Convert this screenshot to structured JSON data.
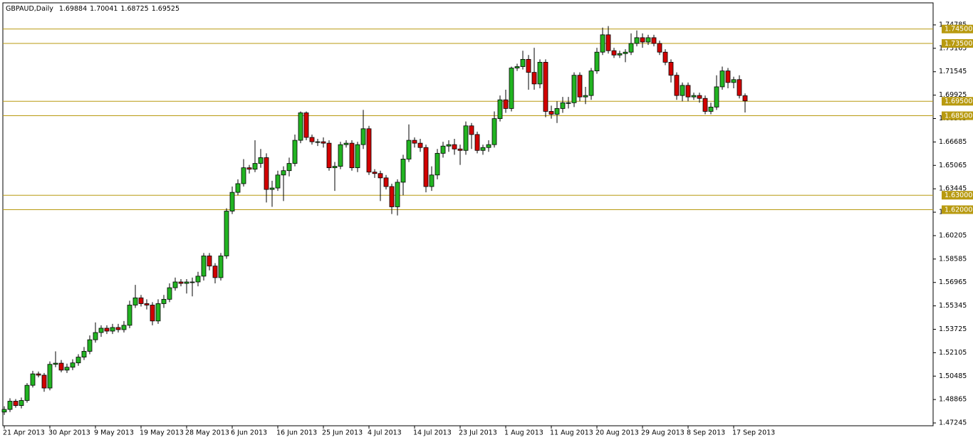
{
  "chart_data": {
    "type": "candlestick",
    "title": "GBPAUD,Daily",
    "header_values": [
      1.69884,
      1.70041,
      1.68725,
      1.69525
    ],
    "categories": [
      "21 Apr 2013",
      null,
      null,
      null,
      null,
      null,
      null,
      null,
      "30 Apr 2013",
      null,
      null,
      null,
      null,
      null,
      null,
      null,
      "9 May 2013",
      null,
      null,
      null,
      null,
      null,
      null,
      null,
      "19 May 2013",
      null,
      null,
      null,
      null,
      null,
      null,
      null,
      "28 May 2013",
      null,
      null,
      null,
      null,
      null,
      null,
      null,
      "6 Jun 2013",
      null,
      null,
      null,
      null,
      null,
      null,
      null,
      "16 Jun 2013",
      null,
      null,
      null,
      null,
      null,
      null,
      null,
      "25 Jun 2013",
      null,
      null,
      null,
      null,
      null,
      null,
      null,
      "4 Jul 2013",
      null,
      null,
      null,
      null,
      null,
      null,
      null,
      "14 Jul 2013",
      null,
      null,
      null,
      null,
      null,
      null,
      null,
      "23 Jul 2013",
      null,
      null,
      null,
      null,
      null,
      null,
      null,
      "1 Aug 2013",
      null,
      null,
      null,
      null,
      null,
      null,
      null,
      "11 Aug 2013",
      null,
      null,
      null,
      null,
      null,
      null,
      null,
      "20 Aug 2013",
      null,
      null,
      null,
      null,
      null,
      null,
      null,
      "29 Aug 2013",
      null,
      null,
      null,
      null,
      null,
      null,
      null,
      "8 Sep 2013",
      null,
      null,
      null,
      null,
      null,
      null,
      null,
      "17 Sep 2013",
      null,
      null
    ],
    "open": [
      1.48,
      1.4818,
      1.4875,
      1.4845,
      1.488,
      1.4985,
      1.5064,
      1.5055,
      1.4966,
      1.513,
      1.5138,
      1.509,
      1.511,
      1.514,
      1.518,
      1.522,
      1.53,
      1.535,
      1.538,
      1.536,
      1.5385,
      1.537,
      1.54,
      1.554,
      1.559,
      1.555,
      1.554,
      1.543,
      1.555,
      1.558,
      1.566,
      1.57,
      1.569,
      1.57,
      1.57,
      1.574,
      1.588,
      1.581,
      1.573,
      1.588,
      1.619,
      1.632,
      1.638,
      1.649,
      1.648,
      1.652,
      1.656,
      1.634,
      1.635,
      1.644,
      1.647,
      1.652,
      1.668,
      1.687,
      1.67,
      1.667,
      1.667,
      1.666,
      1.649,
      1.65,
      1.665,
      1.666,
      1.649,
      1.665,
      1.676,
      1.646,
      1.645,
      1.642,
      1.636,
      1.622,
      1.639,
      1.655,
      1.668,
      1.666,
      1.663,
      1.636,
      1.644,
      1.659,
      1.664,
      1.665,
      1.662,
      1.661,
      1.678,
      1.672,
      1.661,
      1.663,
      1.665,
      1.683,
      1.696,
      1.69,
      1.718,
      1.719,
      1.724,
      1.715,
      1.707,
      1.722,
      1.688,
      1.686,
      1.69,
      1.694,
      1.694,
      1.713,
      1.698,
      1.699,
      1.716,
      1.729,
      1.741,
      1.73,
      1.727,
      1.728,
      1.729,
      1.735,
      1.739,
      1.736,
      1.739,
      1.735,
      1.729,
      1.722,
      1.713,
      1.699,
      1.706,
      1.698,
      1.699,
      1.697,
      1.688,
      1.691,
      1.705,
      1.716,
      1.708,
      1.71,
      1.69884
    ],
    "high": [
      1.484,
      1.4895,
      1.489,
      1.49,
      1.5,
      1.5085,
      1.508,
      1.507,
      1.515,
      1.522,
      1.516,
      1.5135,
      1.5165,
      1.52,
      1.525,
      1.533,
      1.542,
      1.54,
      1.54,
      1.541,
      1.541,
      1.543,
      1.557,
      1.568,
      1.561,
      1.558,
      1.556,
      1.558,
      1.561,
      1.569,
      1.573,
      1.572,
      1.572,
      1.573,
      1.577,
      1.59,
      1.59,
      1.583,
      1.59,
      1.621,
      1.636,
      1.641,
      1.655,
      1.651,
      1.668,
      1.662,
      1.659,
      1.64,
      1.647,
      1.65,
      1.656,
      1.672,
      1.688,
      1.688,
      1.672,
      1.669,
      1.67,
      1.668,
      1.653,
      1.667,
      1.668,
      1.668,
      1.667,
      1.689,
      1.678,
      1.648,
      1.647,
      1.644,
      1.638,
      1.641,
      1.658,
      1.679,
      1.67,
      1.669,
      1.665,
      1.65,
      1.662,
      1.667,
      1.668,
      1.669,
      1.665,
      1.681,
      1.68,
      1.674,
      1.665,
      1.668,
      1.688,
      1.699,
      1.703,
      1.719,
      1.721,
      1.73,
      1.727,
      1.732,
      1.724,
      1.724,
      1.692,
      1.695,
      1.698,
      1.698,
      1.715,
      1.715,
      1.705,
      1.718,
      1.732,
      1.746,
      1.747,
      1.732,
      1.73,
      1.731,
      1.742,
      1.744,
      1.742,
      1.741,
      1.741,
      1.737,
      1.731,
      1.724,
      1.715,
      1.708,
      1.708,
      1.701,
      1.701,
      1.699,
      1.694,
      1.713,
      1.719,
      1.718,
      1.712,
      1.713,
      1.70041
    ],
    "low": [
      1.478,
      1.48,
      1.483,
      1.4825,
      1.4865,
      1.497,
      1.504,
      1.494,
      1.495,
      1.511,
      1.5075,
      1.507,
      1.509,
      1.512,
      1.516,
      1.52,
      1.528,
      1.532,
      1.534,
      1.534,
      1.535,
      1.535,
      1.538,
      1.552,
      1.553,
      1.551,
      1.54,
      1.541,
      1.552,
      1.556,
      1.564,
      1.567,
      1.562,
      1.56,
      1.567,
      1.571,
      1.578,
      1.569,
      1.571,
      1.586,
      1.617,
      1.63,
      1.636,
      1.645,
      1.646,
      1.649,
      1.625,
      1.622,
      1.633,
      1.626,
      1.643,
      1.65,
      1.666,
      1.668,
      1.665,
      1.664,
      1.663,
      1.647,
      1.633,
      1.648,
      1.663,
      1.647,
      1.646,
      1.662,
      1.644,
      1.642,
      1.626,
      1.634,
      1.617,
      1.616,
      1.63,
      1.653,
      1.663,
      1.66,
      1.632,
      1.633,
      1.641,
      1.656,
      1.66,
      1.658,
      1.651,
      1.658,
      1.662,
      1.659,
      1.658,
      1.66,
      1.663,
      1.681,
      1.687,
      1.688,
      1.716,
      1.717,
      1.703,
      1.703,
      1.704,
      1.684,
      1.683,
      1.68,
      1.687,
      1.69,
      1.691,
      1.695,
      1.693,
      1.696,
      1.714,
      1.727,
      1.728,
      1.725,
      1.725,
      1.722,
      1.727,
      1.733,
      1.732,
      1.734,
      1.733,
      1.727,
      1.72,
      1.708,
      1.696,
      1.695,
      1.695,
      1.696,
      1.694,
      1.686,
      1.686,
      1.689,
      1.703,
      1.704,
      1.704,
      1.697,
      1.68725
    ],
    "close": [
      1.4818,
      1.4875,
      1.4845,
      1.488,
      1.4985,
      1.5064,
      1.5055,
      1.4966,
      1.513,
      1.5138,
      1.509,
      1.511,
      1.514,
      1.518,
      1.522,
      1.53,
      1.535,
      1.538,
      1.536,
      1.5385,
      1.537,
      1.54,
      1.554,
      1.559,
      1.555,
      1.554,
      1.543,
      1.555,
      1.558,
      1.566,
      1.57,
      1.569,
      1.57,
      1.57,
      1.574,
      1.588,
      1.581,
      1.573,
      1.588,
      1.619,
      1.632,
      1.638,
      1.649,
      1.648,
      1.652,
      1.656,
      1.634,
      1.635,
      1.644,
      1.647,
      1.652,
      1.668,
      1.687,
      1.67,
      1.667,
      1.667,
      1.666,
      1.649,
      1.65,
      1.665,
      1.666,
      1.649,
      1.665,
      1.676,
      1.646,
      1.645,
      1.642,
      1.636,
      1.622,
      1.639,
      1.655,
      1.668,
      1.666,
      1.663,
      1.636,
      1.644,
      1.659,
      1.664,
      1.665,
      1.662,
      1.661,
      1.678,
      1.672,
      1.661,
      1.663,
      1.665,
      1.683,
      1.696,
      1.69,
      1.718,
      1.719,
      1.724,
      1.715,
      1.707,
      1.722,
      1.688,
      1.686,
      1.69,
      1.694,
      1.694,
      1.713,
      1.698,
      1.699,
      1.716,
      1.729,
      1.741,
      1.73,
      1.727,
      1.728,
      1.729,
      1.735,
      1.739,
      1.736,
      1.739,
      1.735,
      1.729,
      1.722,
      1.713,
      1.699,
      1.706,
      1.698,
      1.699,
      1.697,
      1.688,
      1.691,
      1.705,
      1.716,
      1.708,
      1.71,
      1.699,
      1.69525
    ],
    "up_color": "#22b422",
    "down_color": "#d20000",
    "level_color": "#b89a10",
    "levels": [
      {
        "value": 1.745,
        "label": "1.74500"
      },
      {
        "value": 1.735,
        "label": "1.73500"
      },
      {
        "value": 1.695,
        "label": "1.69500"
      },
      {
        "value": 1.685,
        "label": "1.68500"
      },
      {
        "value": 1.63,
        "label": "1.63000"
      },
      {
        "value": 1.62,
        "label": "1.62000"
      }
    ],
    "ylim": [
      1.4705,
      1.7631
    ],
    "yticks": [
      1.47245,
      1.48865,
      1.50485,
      1.52105,
      1.53725,
      1.55345,
      1.56965,
      1.58585,
      1.60205,
      1.61825,
      1.63445,
      1.65065,
      1.66685,
      1.68305,
      1.69925,
      1.71545,
      1.73165,
      1.74785
    ],
    "grid": false
  }
}
